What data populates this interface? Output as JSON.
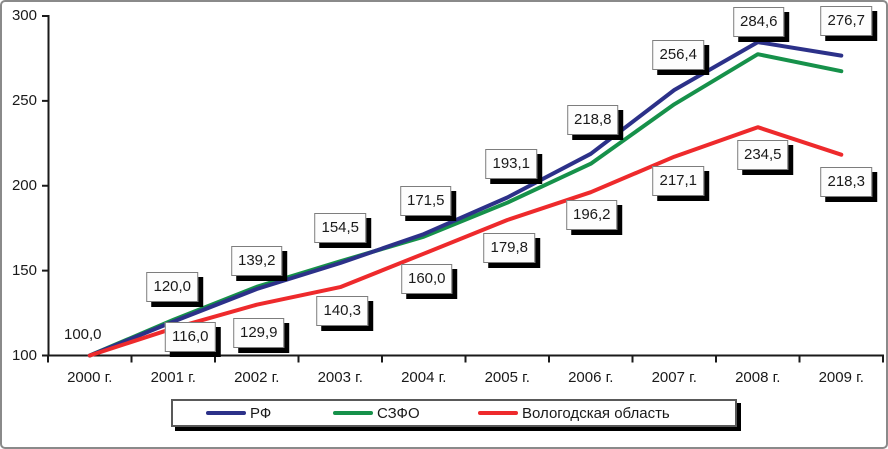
{
  "chart_data": {
    "type": "line",
    "title": "",
    "xlabel": "",
    "ylabel": "",
    "ylim": [
      100,
      300
    ],
    "grid": false,
    "legend_position": "bottom",
    "axis_color": "#1a1a1a",
    "categories": [
      "2000 г.",
      "2001 г.",
      "2002 г.",
      "2003 г.",
      "2004 г.",
      "2005 г.",
      "2006 г.",
      "2007 г.",
      "2008 г.",
      "2009 г."
    ],
    "yticks": [
      "100",
      "150",
      "200",
      "250",
      "300"
    ],
    "series": [
      {
        "name": "РФ",
        "color": "#2c3189",
        "values": [
          100.0,
          120.0,
          139.2,
          154.5,
          171.5,
          193.1,
          218.8,
          256.4,
          284.6,
          276.7
        ],
        "labels": [
          "100,0",
          "120,0",
          "139,2",
          "154,5",
          "171,5",
          "193,1",
          "218,8",
          "256,4",
          "284,6",
          "276,7"
        ]
      },
      {
        "name": "СЗФО",
        "color": "#16914a",
        "values": [
          100.0,
          121.0,
          140.5,
          155.5,
          170.0,
          190.0,
          213.0,
          248.0,
          277.5,
          267.5
        ],
        "labels": [
          "",
          "",
          "",
          "",
          "",
          "",
          "",
          "",
          "",
          ""
        ]
      },
      {
        "name": "Вологодская область",
        "color": "#ee2a2c",
        "values": [
          100.0,
          116.0,
          129.9,
          140.3,
          160.0,
          179.8,
          196.2,
          217.1,
          234.5,
          218.3
        ],
        "labels": [
          "",
          "116,0",
          "129,9",
          "140,3",
          "160,0",
          "179,8",
          "196,2",
          "217,1",
          "234,5",
          "218,3"
        ]
      }
    ]
  }
}
